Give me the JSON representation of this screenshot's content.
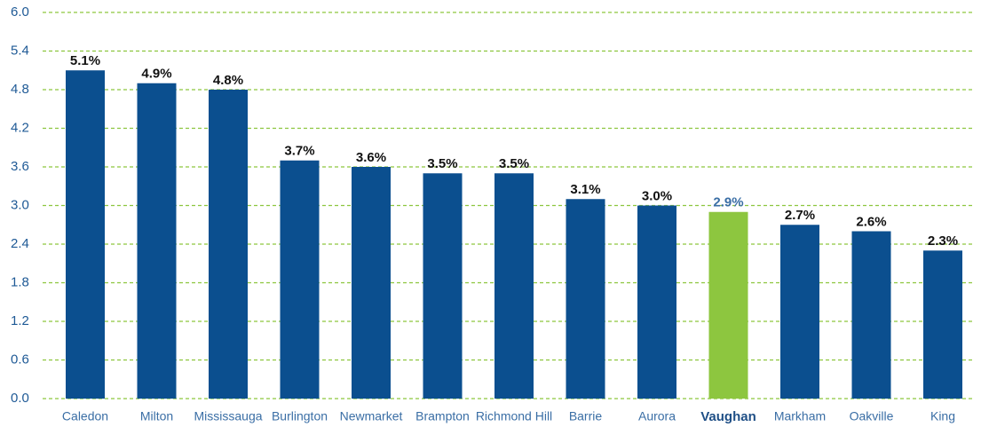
{
  "chart_data": {
    "type": "bar",
    "categories": [
      "Caledon",
      "Milton",
      "Mississauga",
      "Burlington",
      "Newmarket",
      "Brampton",
      "Richmond Hill",
      "Barrie",
      "Aurora",
      "Vaughan",
      "Markham",
      "Oakville",
      "King"
    ],
    "values": [
      5.1,
      4.9,
      4.8,
      3.7,
      3.6,
      3.5,
      3.5,
      3.1,
      3.0,
      2.9,
      2.7,
      2.6,
      2.3
    ],
    "value_labels": [
      "5.1%",
      "4.9%",
      "4.8%",
      "3.7%",
      "3.6%",
      "3.5%",
      "3.5%",
      "3.1%",
      "3.0%",
      "2.9%",
      "2.7%",
      "2.6%",
      "2.3%"
    ],
    "color": "#0b4f8f",
    "colors": [
      "#0b4f8f",
      "#0b4f8f",
      "#0b4f8f",
      "#0b4f8f",
      "#0b4f8f",
      "#0b4f8f",
      "#0b4f8f",
      "#0b4f8f",
      "#0b4f8f",
      "#8dc63f",
      "#0b4f8f",
      "#0b4f8f",
      "#0b4f8f"
    ],
    "ylim": [
      0,
      6
    ],
    "yticks": [
      {
        "value": 0,
        "label": "0.0"
      },
      0.6,
      1.2,
      1.8,
      2.4,
      {
        "value": 3,
        "label": "3.0"
      },
      3.6,
      4.2,
      4.8,
      5.4,
      {
        "value": 6,
        "label": "6.0"
      }
    ],
    "grid": true
  }
}
